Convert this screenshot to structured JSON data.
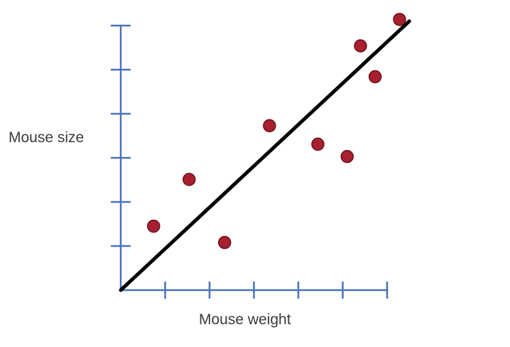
{
  "chart_data": {
    "type": "scatter",
    "title": "",
    "xlabel": "Mouse weight",
    "ylabel": "Mouse size",
    "xlim": [
      0,
      6
    ],
    "ylim": [
      0,
      6
    ],
    "x_ticks": [
      1,
      2,
      3,
      4,
      5,
      6
    ],
    "y_ticks": [
      1,
      2,
      3,
      4,
      5,
      6
    ],
    "tick_labels_shown": false,
    "grid": false,
    "series": [
      {
        "points": [
          {
            "x": 0.74,
            "y": 1.45
          },
          {
            "x": 1.54,
            "y": 2.51
          },
          {
            "x": 2.34,
            "y": 1.08
          },
          {
            "x": 3.35,
            "y": 3.73
          },
          {
            "x": 4.44,
            "y": 3.31
          },
          {
            "x": 5.1,
            "y": 3.03
          },
          {
            "x": 5.4,
            "y": 5.54
          },
          {
            "x": 5.73,
            "y": 4.84
          },
          {
            "x": 6.28,
            "y": 6.14
          }
        ]
      }
    ],
    "trendline": {
      "x": [
        0,
        6.5
      ],
      "y": [
        0,
        6.1
      ]
    },
    "colors": {
      "axis": "#4a72b8",
      "point_fill": "#a82030",
      "point_stroke": "#6a1018",
      "trendline": "#000000"
    }
  }
}
